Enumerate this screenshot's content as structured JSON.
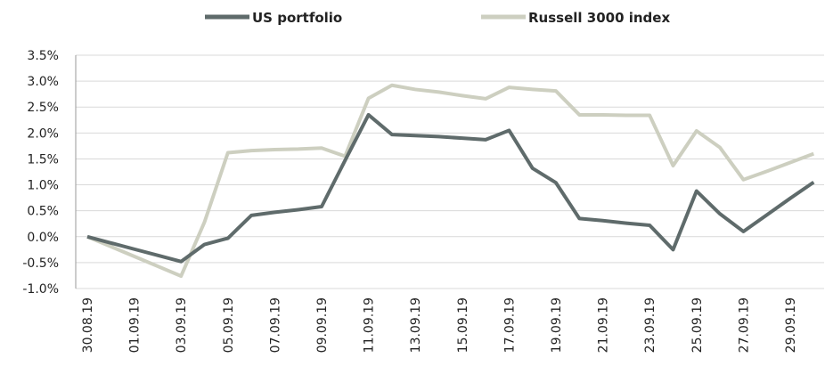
{
  "chart_data": {
    "type": "line",
    "categories": [
      "30.08.19",
      null,
      "01.09.19",
      null,
      "03.09.19",
      null,
      "05.09.19",
      null,
      "07.09.19",
      null,
      "09.09.19",
      null,
      "11.09.19",
      null,
      "13.09.19",
      null,
      "15.09.19",
      null,
      "17.09.19",
      null,
      "19.09.19",
      null,
      "21.09.19",
      null,
      "23.09.19",
      null,
      "25.09.19",
      null,
      "27.09.19",
      null,
      "29.09.19",
      null
    ],
    "series": [
      {
        "name": "US portfolio",
        "color": "#5f6b6b",
        "values": [
          0,
          -0.12,
          -0.24,
          -0.36,
          -0.48,
          -0.15,
          -0.03,
          0.41,
          0.47,
          0.52,
          0.58,
          1.47,
          2.35,
          1.97,
          1.95,
          1.93,
          1.9,
          1.87,
          2.05,
          1.32,
          1.04,
          0.35,
          0.31,
          0.26,
          0.22,
          -0.25,
          0.88,
          0.44,
          0.1,
          0.42,
          0.74,
          1.05
        ]
      },
      {
        "name": "Russell 3000 index",
        "color": "#cdcfc0",
        "values": [
          0,
          -0.19,
          -0.38,
          -0.57,
          -0.76,
          0.28,
          1.62,
          1.66,
          1.68,
          1.69,
          1.71,
          1.55,
          2.67,
          2.92,
          2.84,
          2.79,
          2.72,
          2.66,
          2.88,
          2.84,
          2.81,
          2.35,
          2.35,
          2.34,
          2.34,
          1.37,
          2.04,
          1.72,
          1.1,
          1.26,
          1.43,
          1.6
        ]
      }
    ],
    "ylim": [
      -1.0,
      3.5
    ],
    "yticks": [
      {
        "value": -1.0,
        "label": "-1.0%"
      },
      {
        "value": -0.5,
        "label": "-0.5%"
      },
      {
        "value": 0,
        "label": "0.0%"
      },
      {
        "value": 0.5,
        "label": "0.5%"
      },
      {
        "value": 1.0,
        "label": "1.0%"
      },
      {
        "value": 1.5,
        "label": "1.5%"
      },
      {
        "value": 2.0,
        "label": "2.0%"
      },
      {
        "value": 2.5,
        "label": "2.5%"
      },
      {
        "value": 3.0,
        "label": "3.0%"
      },
      {
        "value": 3.5,
        "label": "3.5%"
      }
    ],
    "grid": true,
    "legend": "top"
  }
}
